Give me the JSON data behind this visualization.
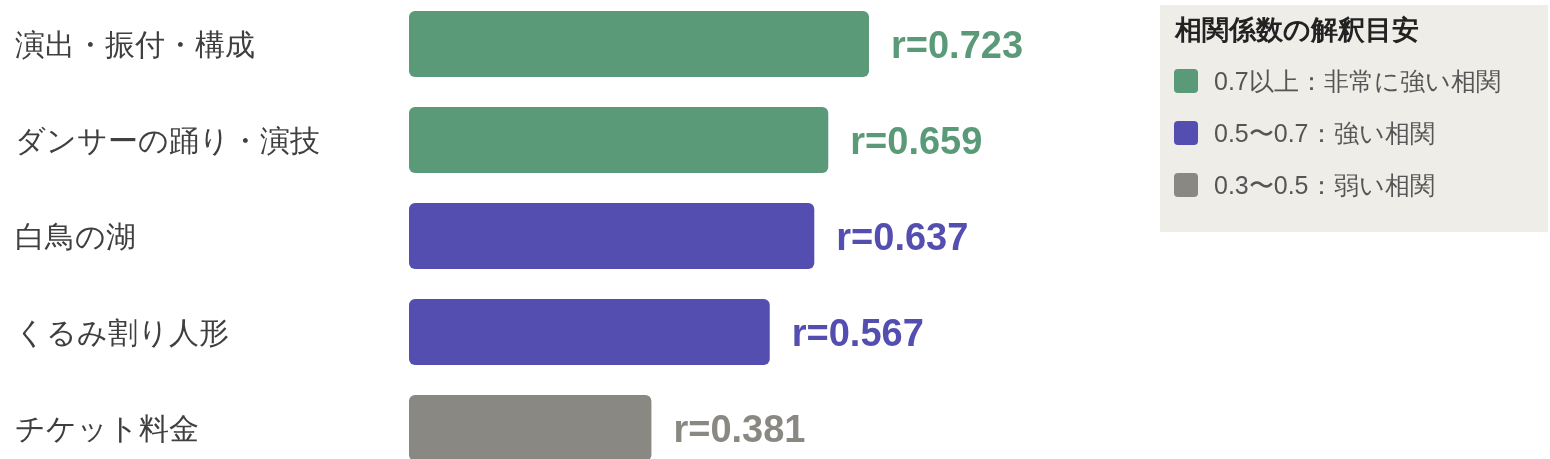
{
  "chart_data": {
    "type": "bar",
    "orientation": "horizontal",
    "categories": [
      "演出・振付・構成",
      "ダンサーの踊り・演技",
      "白鳥の湖",
      "くるみ割り人形",
      "チケット料金"
    ],
    "series": [
      {
        "name": "0.7以上：非常に強い相関",
        "color": "#5a9a78",
        "values": [
          0.723,
          0.659,
          null,
          null,
          null
        ],
        "value_labels": [
          "r=0.723",
          "r=0.659",
          null,
          null,
          null
        ]
      },
      {
        "name": "0.5〜0.7：強い相関",
        "color": "#544eb0",
        "values": [
          null,
          null,
          0.637,
          0.567,
          null
        ],
        "value_labels": [
          null,
          null,
          "r=0.637",
          "r=0.567",
          null
        ]
      },
      {
        "name": "0.3〜0.5：弱い相関",
        "color": "#8a8882",
        "values": [
          null,
          null,
          null,
          null,
          0.381
        ],
        "value_labels": [
          null,
          null,
          null,
          null,
          "r=0.381"
        ]
      }
    ],
    "legend": "top right",
    "legend_title": "相関係数の解釈目安"
  }
}
